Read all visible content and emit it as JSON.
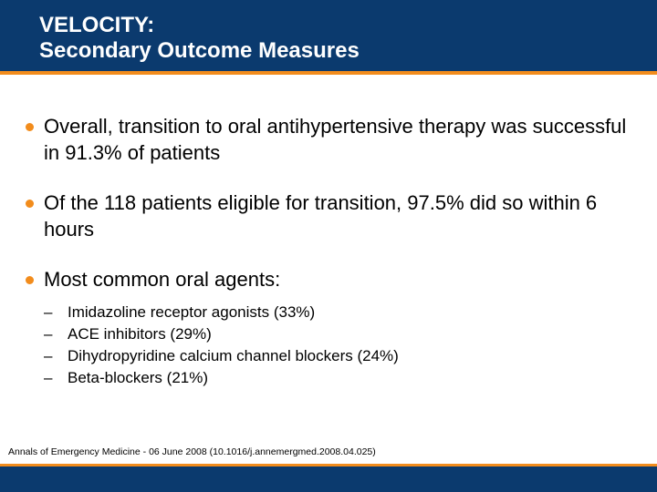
{
  "slide": {
    "title_line1": "VELOCITY:",
    "title_line2": "Secondary Outcome Measures",
    "bullets": [
      {
        "text": "Overall, transition to oral antihypertensive therapy was successful in 91.3% of patients"
      },
      {
        "text": "Of the 118 patients eligible for transition, 97.5% did so within 6 hours"
      },
      {
        "text": "Most common oral agents:"
      }
    ],
    "sub_bullets": [
      "Imidazoline receptor agonists (33%)",
      "ACE inhibitors (29%)",
      "Dihydropyridine calcium channel blockers (24%)",
      "Beta-blockers (21%)"
    ],
    "dash": "–",
    "citation": "Annals of Emergency Medicine - 06 June 2008 (10.1016/j.annemergmed.2008.04.025)"
  },
  "colors": {
    "header": "#0b3a6e",
    "accent": "#f28c1c"
  }
}
